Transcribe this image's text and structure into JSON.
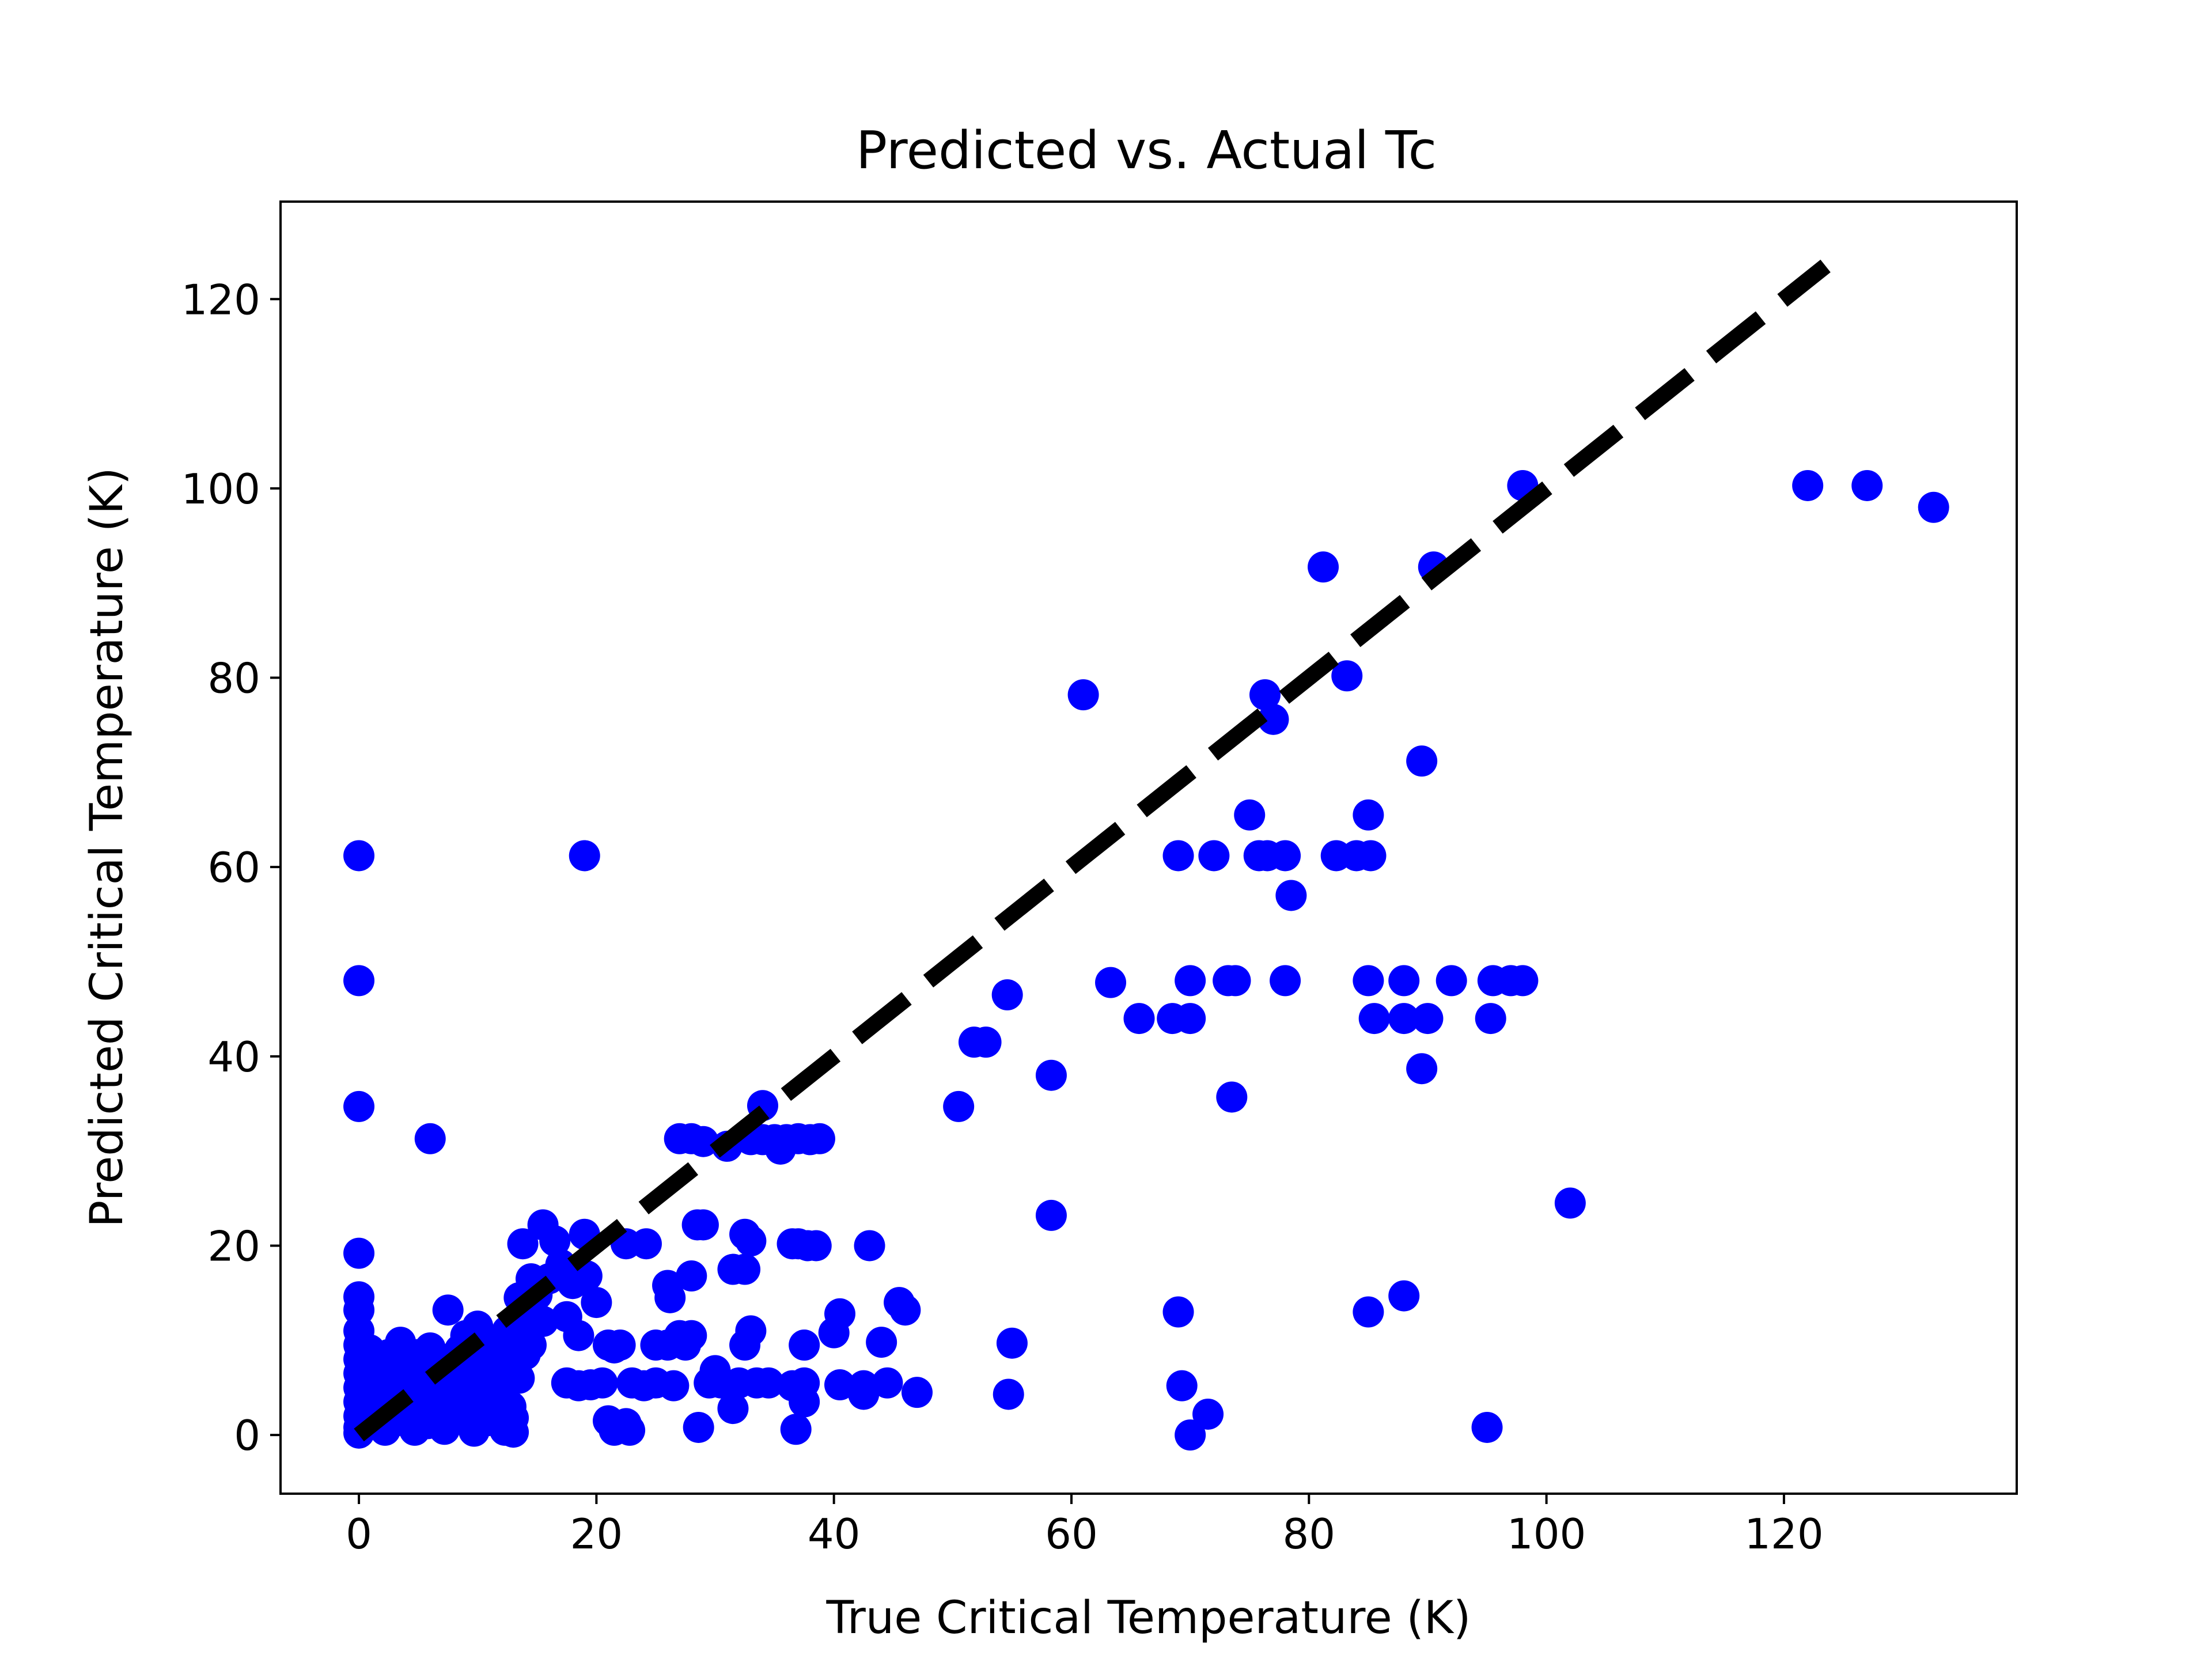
{
  "chart_data": {
    "type": "scatter",
    "title": "Predicted vs. Actual Tc",
    "xlabel": "True Critical Temperature (K)",
    "ylabel": "Predicted Critical Temperature (K)",
    "xlim": [
      -6.6,
      139.6
    ],
    "ylim": [
      -6.2,
      130.3
    ],
    "xticks": [
      0,
      20,
      40,
      60,
      80,
      100,
      120
    ],
    "yticks": [
      0,
      20,
      40,
      60,
      80,
      100,
      120
    ],
    "grid": false,
    "legend": "none",
    "marker_color": "#0000ff",
    "reference_line": {
      "style": "dashed",
      "color": "#000000",
      "x": [
        0,
        123.5
      ],
      "y": [
        0,
        123.5
      ]
    },
    "series": [
      {
        "points": [
          [
            0,
            61.2
          ],
          [
            0,
            48
          ],
          [
            0,
            34.7
          ],
          [
            0,
            19.2
          ],
          [
            0,
            14.6
          ],
          [
            0,
            13.2
          ],
          [
            0,
            11
          ],
          [
            0,
            9.5
          ],
          [
            0,
            8
          ],
          [
            0,
            6.5
          ],
          [
            0,
            5
          ],
          [
            0,
            3.5
          ],
          [
            0,
            2
          ],
          [
            0,
            0.8
          ],
          [
            0,
            0.2
          ],
          [
            0.5,
            3
          ],
          [
            0.7,
            6
          ],
          [
            0.9,
            9
          ],
          [
            1,
            1.5
          ],
          [
            1.2,
            4.5
          ],
          [
            1.5,
            7.5
          ],
          [
            1.8,
            2.5
          ],
          [
            2,
            5.5
          ],
          [
            2.2,
            0.5
          ],
          [
            2.5,
            8.5
          ],
          [
            2.7,
            3.5
          ],
          [
            3,
            6.5
          ],
          [
            3.2,
            1.5
          ],
          [
            3.5,
            9.8
          ],
          [
            3.8,
            4.5
          ],
          [
            4,
            7
          ],
          [
            4.2,
            2.2
          ],
          [
            4.5,
            5.5
          ],
          [
            4.7,
            0.5
          ],
          [
            5,
            8.5
          ],
          [
            5.2,
            3.5
          ],
          [
            5.5,
            6.2
          ],
          [
            5.8,
            1.2
          ],
          [
            6,
            9.2
          ],
          [
            6.2,
            4.2
          ],
          [
            6.5,
            7.5
          ],
          [
            6.8,
            2.8
          ],
          [
            7,
            5
          ],
          [
            7.2,
            0.6
          ],
          [
            7.5,
            8
          ],
          [
            7.7,
            3.2
          ],
          [
            8,
            6.5
          ],
          [
            8.2,
            1.8
          ],
          [
            8.5,
            9
          ],
          [
            8.8,
            4.5
          ],
          [
            9,
            7.2
          ],
          [
            9.2,
            2.2
          ],
          [
            9.5,
            5.5
          ],
          [
            9.7,
            0.4
          ],
          [
            10,
            8.5
          ],
          [
            10.2,
            3.5
          ],
          [
            10.5,
            6
          ],
          [
            10.8,
            1.5
          ],
          [
            11,
            9.5
          ],
          [
            11.2,
            4.2
          ],
          [
            11.5,
            7
          ],
          [
            11.8,
            2.5
          ],
          [
            12,
            5.2
          ],
          [
            12.3,
            0.5
          ],
          [
            12.5,
            8.2
          ],
          [
            12.8,
            3
          ],
          [
            13,
            1.8
          ],
          [
            13,
            0.3
          ],
          [
            13.2,
            10.5
          ],
          [
            13.5,
            6
          ],
          [
            13.8,
            12.5
          ],
          [
            14,
            8.5
          ],
          [
            7.5,
            13.2
          ],
          [
            10,
            11.5
          ],
          [
            11,
            10
          ],
          [
            9,
            10.5
          ],
          [
            12.5,
            11
          ],
          [
            13.5,
            14.5
          ],
          [
            13.8,
            20.2
          ],
          [
            14.5,
            16.5
          ],
          [
            15,
            14.8
          ],
          [
            15.5,
            22.2
          ],
          [
            16,
            16.5
          ],
          [
            16.5,
            20.5
          ],
          [
            17,
            18
          ],
          [
            17.5,
            12.5
          ],
          [
            18,
            16
          ],
          [
            18.5,
            10.5
          ],
          [
            19,
            21.2
          ],
          [
            19.2,
            16.8
          ],
          [
            20,
            14
          ],
          [
            19,
            61.2
          ],
          [
            6,
            31.3
          ],
          [
            15.5,
            12
          ],
          [
            14.5,
            9.5
          ],
          [
            17.5,
            5.5
          ],
          [
            18.5,
            5.2
          ],
          [
            19.5,
            5.3
          ],
          [
            20.5,
            5.5
          ],
          [
            21,
            9.5
          ],
          [
            21.5,
            9.2
          ],
          [
            22,
            9.5
          ],
          [
            22.5,
            20.2
          ],
          [
            21,
            1.5
          ],
          [
            21.5,
            0.5
          ],
          [
            22.5,
            1.2
          ],
          [
            22.8,
            0.5
          ],
          [
            23,
            5.5
          ],
          [
            24,
            5.2
          ],
          [
            24.2,
            20.2
          ],
          [
            25,
            5.5
          ],
          [
            25,
            9.5
          ],
          [
            26,
            9.5
          ],
          [
            26,
            15.8
          ],
          [
            26.2,
            14.5
          ],
          [
            26.5,
            5.2
          ],
          [
            27,
            10.5
          ],
          [
            27.5,
            9.5
          ],
          [
            28,
            10.5
          ],
          [
            28,
            16.8
          ],
          [
            27,
            31.3
          ],
          [
            28,
            31.3
          ],
          [
            29,
            31
          ],
          [
            28.5,
            22.2
          ],
          [
            29,
            22.2
          ],
          [
            29.5,
            5.5
          ],
          [
            30,
            6.8
          ],
          [
            30.5,
            5.5
          ],
          [
            31,
            30.5
          ],
          [
            31.5,
            2.8
          ],
          [
            31.5,
            17.5
          ],
          [
            32,
            5.5
          ],
          [
            32.5,
            17.5
          ],
          [
            32.5,
            9.5
          ],
          [
            33,
            11
          ],
          [
            32.5,
            21.2
          ],
          [
            33,
            20.5
          ],
          [
            33,
            31.2
          ],
          [
            33.5,
            5.5
          ],
          [
            34,
            31.2
          ],
          [
            34,
            34.8
          ],
          [
            34.5,
            5.5
          ],
          [
            35,
            31.2
          ],
          [
            35.5,
            30.2
          ],
          [
            36,
            31.2
          ],
          [
            36.5,
            20.2
          ],
          [
            36.5,
            5.2
          ],
          [
            36.8,
            0.6
          ],
          [
            37,
            20.2
          ],
          [
            37,
            31.3
          ],
          [
            37.5,
            5.5
          ],
          [
            37.5,
            3.5
          ],
          [
            37.5,
            9.5
          ],
          [
            37.8,
            20
          ],
          [
            38,
            31.2
          ],
          [
            38.5,
            20
          ],
          [
            38.8,
            31.3
          ],
          [
            40,
            10.8
          ],
          [
            40.5,
            12.8
          ],
          [
            40.5,
            5.3
          ],
          [
            42.5,
            5.2
          ],
          [
            42.5,
            4.3
          ],
          [
            43,
            20
          ],
          [
            44,
            9.8
          ],
          [
            44.5,
            5.5
          ],
          [
            45.5,
            14
          ],
          [
            46,
            13.2
          ],
          [
            47,
            4.5
          ],
          [
            28.6,
            0.8
          ],
          [
            50.5,
            34.7
          ],
          [
            51.8,
            41.5
          ],
          [
            52.8,
            41.5
          ],
          [
            54.6,
            46.5
          ],
          [
            54.7,
            4.3
          ],
          [
            55,
            9.7
          ],
          [
            58.3,
            38
          ],
          [
            58.3,
            23.2
          ],
          [
            61,
            78.2
          ],
          [
            63.3,
            47.8
          ],
          [
            65.7,
            44
          ],
          [
            68.5,
            44
          ],
          [
            69,
            61.2
          ],
          [
            69,
            13
          ],
          [
            69.3,
            5.2
          ],
          [
            70,
            0
          ],
          [
            70,
            48
          ],
          [
            70,
            44
          ],
          [
            71.5,
            2.2
          ],
          [
            72,
            61.2
          ],
          [
            73.2,
            48
          ],
          [
            73.5,
            35.7
          ],
          [
            73.8,
            48
          ],
          [
            75,
            65.5
          ],
          [
            75.8,
            61.2
          ],
          [
            76.3,
            78.2
          ],
          [
            76.5,
            61.2
          ],
          [
            77,
            75.6
          ],
          [
            78,
            48
          ],
          [
            78,
            61.2
          ],
          [
            78.5,
            57
          ],
          [
            81.2,
            91.7
          ],
          [
            82.3,
            61.2
          ],
          [
            83.2,
            80.2
          ],
          [
            84,
            61.2
          ],
          [
            85,
            65.5
          ],
          [
            85,
            48
          ],
          [
            85,
            13
          ],
          [
            85.2,
            61.2
          ],
          [
            85.5,
            44
          ],
          [
            88,
            14.7
          ],
          [
            88,
            48
          ],
          [
            88,
            44
          ],
          [
            89.5,
            71.2
          ],
          [
            89.5,
            38.7
          ],
          [
            90,
            44
          ],
          [
            90.5,
            91.7
          ],
          [
            92,
            48
          ],
          [
            95,
            0.8
          ],
          [
            95.3,
            44
          ],
          [
            95.5,
            48
          ],
          [
            97,
            48
          ],
          [
            98,
            48
          ],
          [
            98,
            100.3
          ],
          [
            102,
            24.5
          ],
          [
            122,
            100.3
          ],
          [
            127,
            100.3
          ],
          [
            132.6,
            98
          ]
        ]
      }
    ]
  }
}
